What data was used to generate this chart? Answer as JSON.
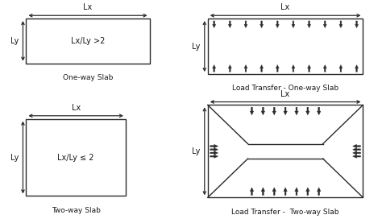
{
  "bg_color": "#ffffff",
  "line_color": "#2a2a2a",
  "arrow_color": "#2a2a2a",
  "text_color": "#1a1a1a",
  "titles": {
    "one_way_slab": "One-way Slab",
    "two_way_slab": "Two-way Slab",
    "load_one_way": "Load Transfer - One-way Slab",
    "load_two_way": "Load Transfer -  Two-way Slab"
  },
  "labels": {
    "lx": "Lx",
    "ly": "Ly",
    "ratio_one": "Lx/Ly >2",
    "ratio_two": "Lx/Ly ≤ 2"
  }
}
